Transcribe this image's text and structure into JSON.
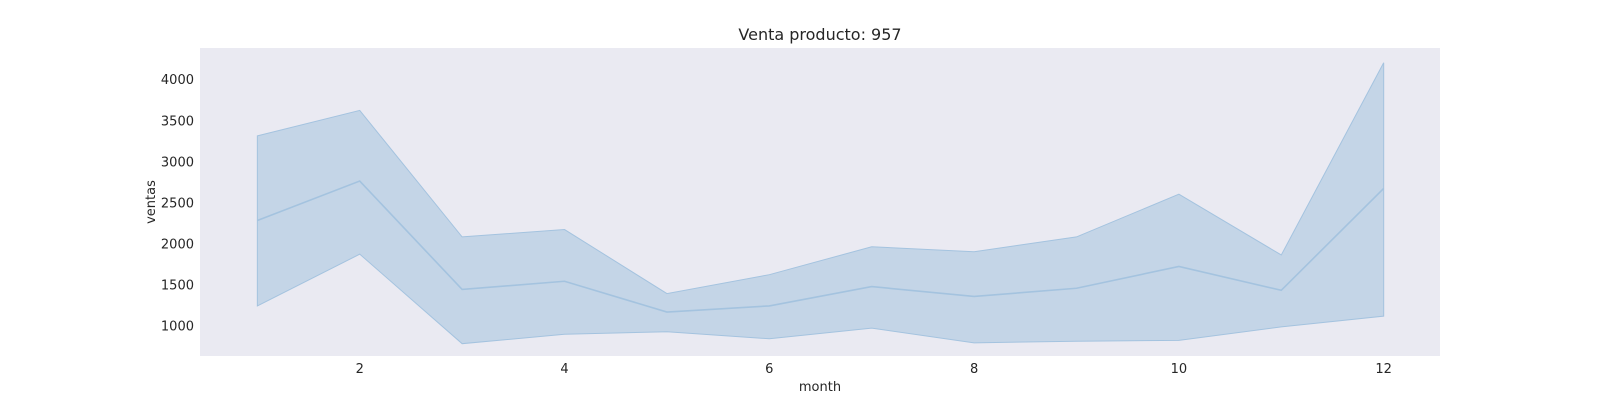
{
  "chart_data": {
    "type": "line",
    "title": "Venta producto: 957",
    "xlabel": "month",
    "ylabel": "ventas",
    "x": [
      1,
      2,
      3,
      4,
      5,
      6,
      7,
      8,
      9,
      10,
      11,
      12
    ],
    "xlim": [
      0.44,
      12.55
    ],
    "ylim": [
      630,
      4380
    ],
    "xticks": [
      2,
      4,
      6,
      8,
      10,
      12
    ],
    "yticks": [
      1000,
      1500,
      2000,
      2500,
      3000,
      3500,
      4000
    ],
    "grid": false,
    "series": [
      {
        "values": [
          2280,
          2760,
          1440,
          1540,
          1165,
          1240,
          1475,
          1355,
          1455,
          1720,
          1430,
          2670
        ],
        "lower": [
          1240,
          1870,
          780,
          895,
          925,
          840,
          970,
          790,
          810,
          820,
          985,
          1115
        ],
        "upper": [
          3310,
          3620,
          2080,
          2170,
          1390,
          1620,
          1960,
          1900,
          2080,
          2600,
          1860,
          4200
        ]
      }
    ],
    "colors": {
      "line": "#a4c3df",
      "band": "#a4c3df",
      "plot_bg": "#eaeaf2"
    }
  }
}
